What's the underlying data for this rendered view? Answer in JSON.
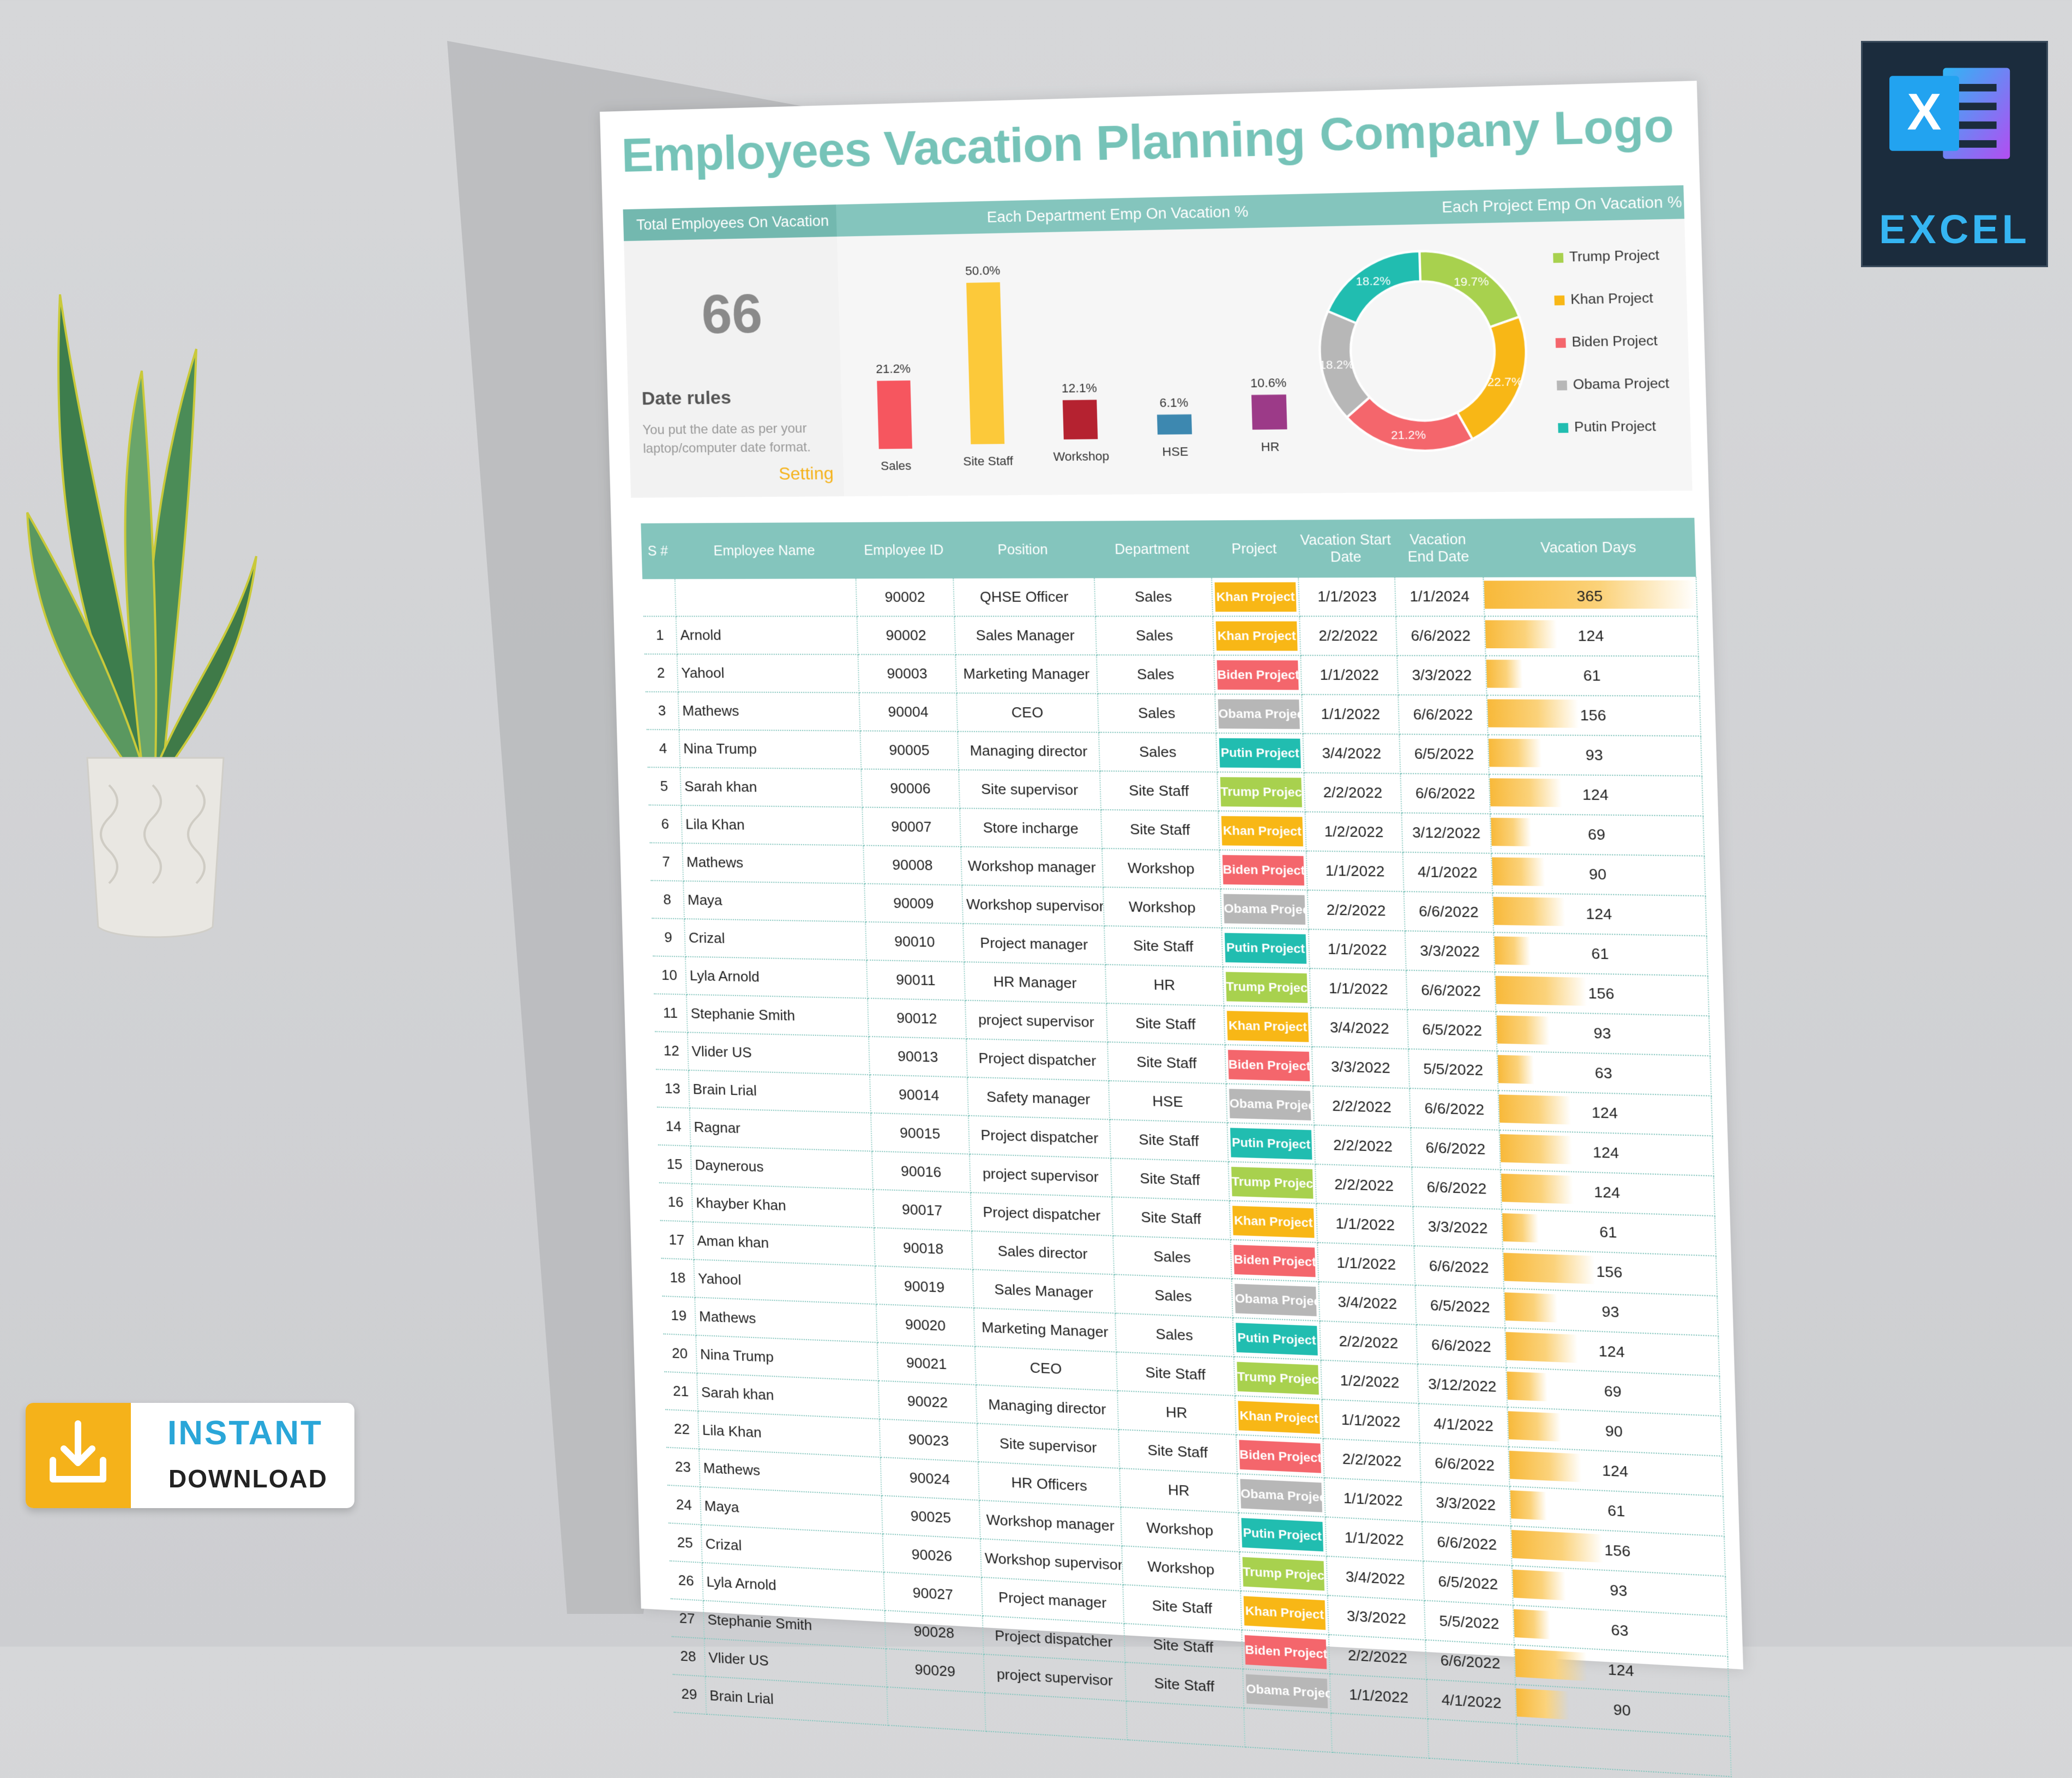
{
  "excel_badge": {
    "letter": "X",
    "label": "EXCEL"
  },
  "instant_download": {
    "line1": "INSTANT",
    "line2": "DOWNLOAD"
  },
  "sheet": {
    "title": "Employees Vacation Planning",
    "logo_text": "Company Logo",
    "header_bar": {
      "total_label": "Total Employees On Vacation",
      "dept_label": "Each Department Emp On Vacation %",
      "project_label": "Each Project Emp On Vacation %"
    },
    "kpi": {
      "total": "66"
    },
    "date_rules": {
      "heading": "Date rules",
      "note": "You put the date as per your laptop/computer date format.",
      "setting": "Setting"
    },
    "colors": {
      "accent": "#84c5bd",
      "title": "#76c3b8",
      "setting": "#f5b21a"
    },
    "project_colors": {
      "Trump Project": "#a8d14e",
      "Khan Project": "#f8b716",
      "Biden Project": "#f4666c",
      "Obama Project": "#b7b7b7",
      "Putin Project": "#21bdb0"
    },
    "table": {
      "headers": [
        "S #",
        "Employee Name",
        "Employee ID",
        "Position",
        "Department",
        "Project",
        "Vacation Start Date",
        "Vacation End Date",
        "Vacation Days"
      ],
      "top_row": {
        "id": "90002",
        "position": "QHSE Officer",
        "department": "Sales",
        "project": "Khan Project",
        "start": "1/1/2023",
        "end": "1/1/2024",
        "days": 365
      },
      "rows": [
        {
          "sn": "1",
          "name": "Arnold",
          "id": "90002",
          "position": "Sales Manager",
          "department": "Sales",
          "project": "Khan Project",
          "start": "2/2/2022",
          "end": "6/6/2022",
          "days": 124
        },
        {
          "sn": "2",
          "name": "Yahool",
          "id": "90003",
          "position": "Marketing Manager",
          "department": "Sales",
          "project": "Biden Project",
          "start": "1/1/2022",
          "end": "3/3/2022",
          "days": 61
        },
        {
          "sn": "3",
          "name": "Mathews",
          "id": "90004",
          "position": "CEO",
          "department": "Sales",
          "project": "Obama Project",
          "start": "1/1/2022",
          "end": "6/6/2022",
          "days": 156
        },
        {
          "sn": "4",
          "name": "Nina Trump",
          "id": "90005",
          "position": "Managing director",
          "department": "Sales",
          "project": "Putin Project",
          "start": "3/4/2022",
          "end": "6/5/2022",
          "days": 93
        },
        {
          "sn": "5",
          "name": "Sarah khan",
          "id": "90006",
          "position": "Site supervisor",
          "department": "Site Staff",
          "project": "Trump Project",
          "start": "2/2/2022",
          "end": "6/6/2022",
          "days": 124
        },
        {
          "sn": "6",
          "name": "Lila Khan",
          "id": "90007",
          "position": "Store incharge",
          "department": "Site Staff",
          "project": "Khan Project",
          "start": "1/2/2022",
          "end": "3/12/2022",
          "days": 69
        },
        {
          "sn": "7",
          "name": "Mathews",
          "id": "90008",
          "position": "Workshop manager",
          "department": "Workshop",
          "project": "Biden Project",
          "start": "1/1/2022",
          "end": "4/1/2022",
          "days": 90
        },
        {
          "sn": "8",
          "name": "Maya",
          "id": "90009",
          "position": "Workshop supervisor",
          "department": "Workshop",
          "project": "Obama Project",
          "start": "2/2/2022",
          "end": "6/6/2022",
          "days": 124
        },
        {
          "sn": "9",
          "name": "Crizal",
          "id": "90010",
          "position": "Project manager",
          "department": "Site Staff",
          "project": "Putin Project",
          "start": "1/1/2022",
          "end": "3/3/2022",
          "days": 61
        },
        {
          "sn": "10",
          "name": "Lyla Arnold",
          "id": "90011",
          "position": "HR Manager",
          "department": "HR",
          "project": "Trump Project",
          "start": "1/1/2022",
          "end": "6/6/2022",
          "days": 156
        },
        {
          "sn": "11",
          "name": "Stephanie Smith",
          "id": "90012",
          "position": "project supervisor",
          "department": "Site Staff",
          "project": "Khan Project",
          "start": "3/4/2022",
          "end": "6/5/2022",
          "days": 93
        },
        {
          "sn": "12",
          "name": "Vlider US",
          "id": "90013",
          "position": "Project dispatcher",
          "department": "Site Staff",
          "project": "Biden Project",
          "start": "3/3/2022",
          "end": "5/5/2022",
          "days": 63
        },
        {
          "sn": "13",
          "name": "Brain Lrial",
          "id": "90014",
          "position": "Safety manager",
          "department": "HSE",
          "project": "Obama Project",
          "start": "2/2/2022",
          "end": "6/6/2022",
          "days": 124
        },
        {
          "sn": "14",
          "name": "Ragnar",
          "id": "90015",
          "position": "Project dispatcher",
          "department": "Site Staff",
          "project": "Putin Project",
          "start": "2/2/2022",
          "end": "6/6/2022",
          "days": 124
        },
        {
          "sn": "15",
          "name": "Daynerous",
          "id": "90016",
          "position": "project supervisor",
          "department": "Site Staff",
          "project": "Trump Project",
          "start": "2/2/2022",
          "end": "6/6/2022",
          "days": 124
        },
        {
          "sn": "16",
          "name": "Khayber Khan",
          "id": "90017",
          "position": "Project dispatcher",
          "department": "Site Staff",
          "project": "Khan Project",
          "start": "1/1/2022",
          "end": "3/3/2022",
          "days": 61
        },
        {
          "sn": "17",
          "name": "Aman khan",
          "id": "90018",
          "position": "Sales director",
          "department": "Sales",
          "project": "Biden Project",
          "start": "1/1/2022",
          "end": "6/6/2022",
          "days": 156
        },
        {
          "sn": "18",
          "name": "Yahool",
          "id": "90019",
          "position": "Sales Manager",
          "department": "Sales",
          "project": "Obama Project",
          "start": "3/4/2022",
          "end": "6/5/2022",
          "days": 93
        },
        {
          "sn": "19",
          "name": "Mathews",
          "id": "90020",
          "position": "Marketing Manager",
          "department": "Sales",
          "project": "Putin Project",
          "start": "2/2/2022",
          "end": "6/6/2022",
          "days": 124
        },
        {
          "sn": "20",
          "name": "Nina Trump",
          "id": "90021",
          "position": "CEO",
          "department": "Site Staff",
          "project": "Trump Project",
          "start": "1/2/2022",
          "end": "3/12/2022",
          "days": 69
        },
        {
          "sn": "21",
          "name": "Sarah khan",
          "id": "90022",
          "position": "Managing director",
          "department": "HR",
          "project": "Khan Project",
          "start": "1/1/2022",
          "end": "4/1/2022",
          "days": 90
        },
        {
          "sn": "22",
          "name": "Lila Khan",
          "id": "90023",
          "position": "Site supervisor",
          "department": "Site Staff",
          "project": "Biden Project",
          "start": "2/2/2022",
          "end": "6/6/2022",
          "days": 124
        },
        {
          "sn": "23",
          "name": "Mathews",
          "id": "90024",
          "position": "HR Officers",
          "department": "HR",
          "project": "Obama Project",
          "start": "1/1/2022",
          "end": "3/3/2022",
          "days": 61
        },
        {
          "sn": "24",
          "name": "Maya",
          "id": "90025",
          "position": "Workshop manager",
          "department": "Workshop",
          "project": "Putin Project",
          "start": "1/1/2022",
          "end": "6/6/2022",
          "days": 156
        },
        {
          "sn": "25",
          "name": "Crizal",
          "id": "90026",
          "position": "Workshop supervisor",
          "department": "Workshop",
          "project": "Trump Project",
          "start": "3/4/2022",
          "end": "6/5/2022",
          "days": 93
        },
        {
          "sn": "26",
          "name": "Lyla Arnold",
          "id": "90027",
          "position": "Project manager",
          "department": "Site Staff",
          "project": "Khan Project",
          "start": "3/3/2022",
          "end": "5/5/2022",
          "days": 63
        },
        {
          "sn": "27",
          "name": "Stephanie Smith",
          "id": "90028",
          "position": "Project dispatcher",
          "department": "Site Staff",
          "project": "Biden Project",
          "start": "2/2/2022",
          "end": "6/6/2022",
          "days": 124
        },
        {
          "sn": "28",
          "name": "Vlider US",
          "id": "90029",
          "position": "project supervisor",
          "department": "Site Staff",
          "project": "Obama Project",
          "start": "1/1/2022",
          "end": "4/1/2022",
          "days": 90
        },
        {
          "sn": "29",
          "name": "Brain Lrial",
          "id": "",
          "position": "",
          "department": "",
          "project": "",
          "start": "",
          "end": "",
          "days": null
        }
      ]
    },
    "chart_data": [
      {
        "type": "bar",
        "categories": [
          "Sales",
          "Site Staff",
          "Workshop",
          "HSE",
          "HR"
        ],
        "values": [
          21.2,
          50.0,
          12.1,
          6.1,
          10.6
        ],
        "value_labels": [
          "21.2%",
          "50.0%",
          "12.1%",
          "6.1%",
          "10.6%"
        ],
        "colors": [
          "#f6565f",
          "#fcc93a",
          "#b52230",
          "#3d88b0",
          "#9c3a88"
        ],
        "ylim": [
          0,
          50
        ],
        "grid": false
      },
      {
        "type": "pie",
        "donut": true,
        "categories": [
          "Trump Project",
          "Khan Project",
          "Biden Project",
          "Obama Project",
          "Putin Project"
        ],
        "values": [
          19.7,
          22.7,
          21.2,
          18.2,
          18.2
        ],
        "value_labels": [
          "19.7%",
          "22.7%",
          "21.2%",
          "18.2%",
          "18.2%"
        ],
        "colors": [
          "#a8d14e",
          "#f8b716",
          "#f4666c",
          "#b7b7b7",
          "#21bdb0"
        ],
        "legend": "right"
      }
    ]
  }
}
